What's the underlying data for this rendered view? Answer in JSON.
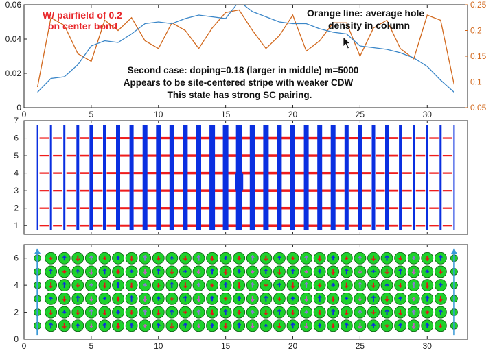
{
  "chart_data": [
    {
      "type": "line",
      "title": "",
      "xlabel": "",
      "ylabel": "",
      "xlim": [
        0,
        33
      ],
      "ylim": [
        0,
        0.06
      ],
      "y2lim": [
        0.05,
        0.25
      ],
      "xticks": [
        "0",
        "5",
        "10",
        "15",
        "20",
        "25",
        "30"
      ],
      "yticks": [
        "0",
        "0.02",
        "0.04",
        "0.06"
      ],
      "y2ticks": [
        "0.05",
        "0.1",
        "0.15",
        "0.2",
        "0.25"
      ],
      "colors": {
        "blue": "#3a86c8",
        "orange": "#d2691e",
        "red_text": "#e8262a"
      },
      "series": [
        {
          "name": "pair field (blue, left axis)",
          "x": [
            1,
            2,
            3,
            4,
            5,
            6,
            7,
            8,
            9,
            10,
            11,
            12,
            13,
            14,
            15,
            16,
            17,
            18,
            19,
            20,
            21,
            22,
            23,
            24,
            25,
            26,
            27,
            28,
            29,
            30,
            31,
            32
          ],
          "values": [
            0.009,
            0.017,
            0.018,
            0.025,
            0.036,
            0.039,
            0.038,
            0.043,
            0.049,
            0.05,
            0.049,
            0.052,
            0.054,
            0.053,
            0.052,
            0.062,
            0.056,
            0.053,
            0.05,
            0.049,
            0.049,
            0.046,
            0.044,
            0.043,
            0.036,
            0.035,
            0.034,
            0.032,
            0.029,
            0.024,
            0.016,
            0.009
          ]
        },
        {
          "name": "average hole density in column (orange, right axis)",
          "x": [
            1,
            2,
            3,
            4,
            5,
            6,
            7,
            8,
            9,
            10,
            11,
            12,
            13,
            14,
            15,
            16,
            17,
            18,
            19,
            20,
            21,
            22,
            23,
            24,
            25,
            26,
            27,
            28,
            29,
            30,
            31,
            32
          ],
          "values": [
            0.09,
            0.225,
            0.21,
            0.155,
            0.14,
            0.22,
            0.2,
            0.225,
            0.18,
            0.165,
            0.215,
            0.2,
            0.165,
            0.205,
            0.235,
            0.24,
            0.2,
            0.165,
            0.19,
            0.23,
            0.16,
            0.18,
            0.215,
            0.215,
            0.15,
            0.205,
            0.22,
            0.165,
            0.145,
            0.23,
            0.22,
            0.095
          ]
        }
      ],
      "annotations": {
        "pairfield_line1": "W/ pairfield of 0.2",
        "pairfield_line2": "on center bond",
        "orange_line1": "Orange line: average hole",
        "orange_line2": "density in column",
        "case_line1": "Second case: doping=0.18 (larger in middle)   m=5000",
        "case_line2": "Appears to be site-centered stripe with weaker CDW",
        "case_line3": "This state has strong SC pairing."
      }
    },
    {
      "type": "heatmap",
      "title": "",
      "xlim": [
        0,
        33
      ],
      "ylim": [
        0.5,
        7
      ],
      "xticks": [
        "0",
        "5",
        "10",
        "15",
        "20",
        "25",
        "30"
      ],
      "yticks": [
        "1",
        "2",
        "3",
        "4",
        "5",
        "6",
        "7"
      ],
      "description_colors": {
        "vertical_bond": "#0a2fe0",
        "horizontal_bond": "#ee1c1c"
      },
      "vertical_bond_widths": [
        2,
        3,
        3,
        4,
        5,
        5,
        6,
        6,
        7,
        7,
        7,
        7,
        7,
        8,
        8,
        9,
        8,
        8,
        7,
        7,
        7,
        7,
        7,
        6,
        6,
        5,
        5,
        4,
        3,
        3,
        3,
        2
      ],
      "horizontal_bond_rows": [
        1,
        2,
        3,
        4,
        5,
        6
      ],
      "center_bond": {
        "x": 16,
        "y": 3.5
      }
    },
    {
      "type": "scatter",
      "title": "",
      "xlim": [
        0,
        33
      ],
      "ylim": [
        0,
        7
      ],
      "xticks": [
        "0",
        "5",
        "10",
        "15",
        "20",
        "25",
        "30"
      ],
      "yticks": [
        "0",
        "2",
        "4",
        "6"
      ],
      "markers": {
        "circle_color": "#1ed12b",
        "spin_up_color": "#1030d8",
        "spin_down_color": "#e01818",
        "edge_spin_color": "#3a9ad8"
      },
      "rows": [
        1,
        2,
        3,
        4,
        5,
        6
      ],
      "columns": 32
    }
  ]
}
